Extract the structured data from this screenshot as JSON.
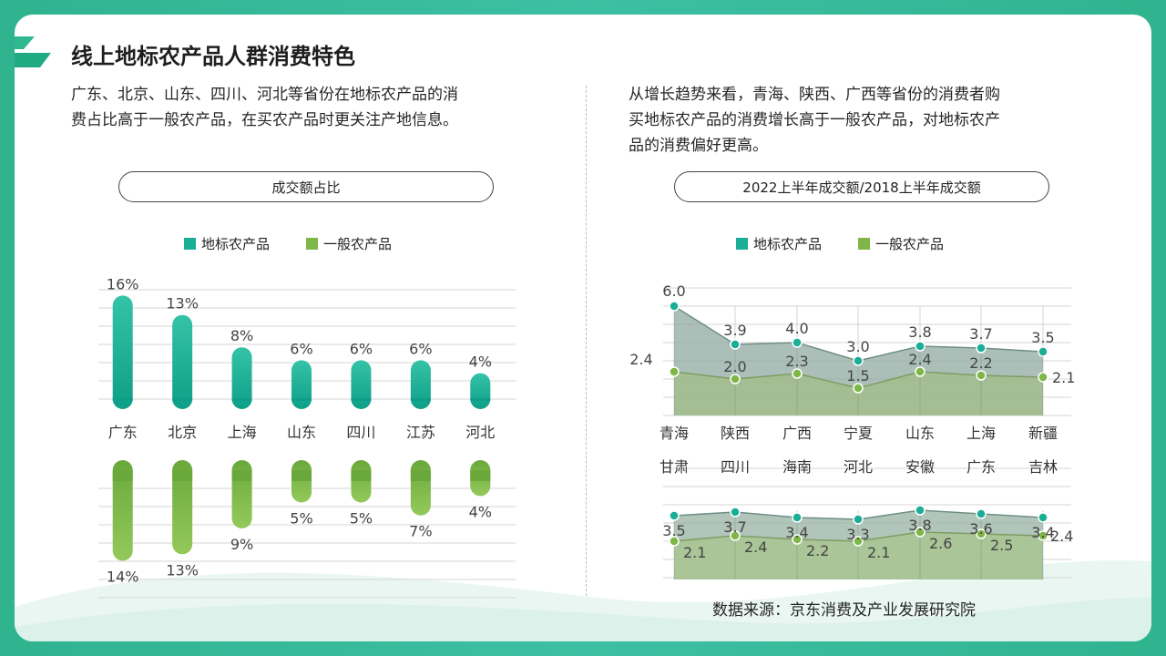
{
  "page": {
    "title": "线上地标农产品人群消费特色",
    "left_paragraph": [
      "广东、北京、山东、四川、河北等省份在地标农产品的消",
      "费占比高于一般农产品，在买农产品时更关注产地信息。"
    ],
    "right_paragraph": [
      "从增长趋势来看，青海、陕西、广西等省份的消费者购",
      "买地标农产品的消费增长高于一般农产品，对地标农产",
      "品的消费偏好更高。"
    ],
    "source": "数据来源：京东消费及产业发展研究院"
  },
  "colors": {
    "teal": "#1aae97",
    "green": "#7fb648",
    "frame": "#2fb38f"
  },
  "chart_data": [
    {
      "type": "bar",
      "title": "成交额占比",
      "categories": [
        "广东",
        "北京",
        "上海",
        "山东",
        "四川",
        "江苏",
        "河北"
      ],
      "legend": [
        "地标农产品",
        "一般农产品"
      ],
      "series": [
        {
          "name": "地标农产品",
          "values": [
            16,
            13,
            8,
            6,
            6,
            6,
            4
          ],
          "labels": [
            "16%",
            "13%",
            "8%",
            "6%",
            "6%",
            "6%",
            "4%"
          ]
        },
        {
          "name": "一般农产品",
          "values": [
            14,
            13,
            9,
            5,
            5,
            7,
            4
          ],
          "labels": [
            "14%",
            "13%",
            "9%",
            "5%",
            "5%",
            "7%",
            "4%"
          ]
        }
      ],
      "grid": true,
      "legend_position": "top"
    },
    {
      "type": "area",
      "title": "2022上半年成交额/2018上半年成交额",
      "legend": [
        "地标农产品",
        "一般农产品"
      ],
      "panels": [
        {
          "categories": [
            "青海",
            "陕西",
            "广西",
            "宁夏",
            "山东",
            "上海",
            "新疆"
          ],
          "series": [
            {
              "name": "地标农产品",
              "values": [
                6.0,
                3.9,
                4.0,
                3.0,
                3.8,
                3.7,
                3.5
              ],
              "labels": [
                "6.0",
                "3.9",
                "4.0",
                "3.0",
                "3.8",
                "3.7",
                "3.5"
              ]
            },
            {
              "name": "一般农产品",
              "values": [
                2.4,
                2.0,
                2.3,
                1.5,
                2.4,
                2.2,
                2.1
              ],
              "labels": [
                "2.4",
                "2.0",
                "2.3",
                "1.5",
                "2.4",
                "2.2",
                "2.1"
              ]
            }
          ]
        },
        {
          "categories": [
            "甘肃",
            "四川",
            "海南",
            "河北",
            "安徽",
            "广东",
            "吉林"
          ],
          "series": [
            {
              "name": "地标农产品",
              "values": [
                3.5,
                3.7,
                3.4,
                3.3,
                3.8,
                3.6,
                3.4
              ],
              "labels": [
                "3.5",
                "3.7",
                "3.4",
                "3.3",
                "3.8",
                "3.6",
                "3.4"
              ]
            },
            {
              "name": "一般农产品",
              "values": [
                2.1,
                2.4,
                2.2,
                2.1,
                2.6,
                2.5,
                2.4
              ],
              "labels": [
                "2.1",
                "2.4",
                "2.2",
                "2.1",
                "2.6",
                "2.5",
                "2.4"
              ]
            }
          ]
        }
      ],
      "grid": true,
      "legend_position": "top"
    }
  ]
}
